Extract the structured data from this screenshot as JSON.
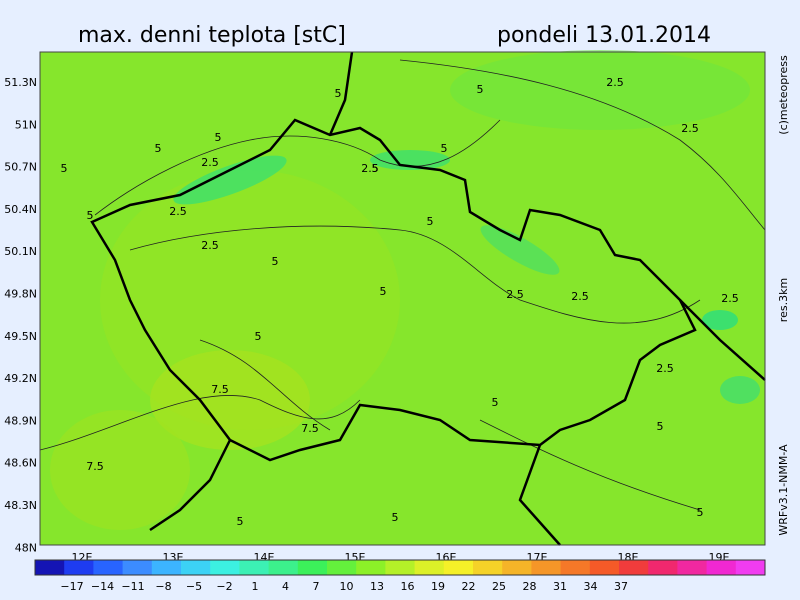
{
  "header": {
    "title": "max. denni teplota [stC]",
    "date": "pondeli 13.01.2014"
  },
  "map": {
    "lat_labels": [
      "51.3N",
      "51N",
      "50.7N",
      "50.4N",
      "50.1N",
      "49.8N",
      "49.5N",
      "49.2N",
      "48.9N",
      "48.6N",
      "48.3N",
      "48N"
    ],
    "lon_labels": [
      "12E",
      "13E",
      "14E",
      "15E",
      "16E",
      "17E",
      "18E",
      "19E"
    ],
    "contour_labels": [
      "5",
      "5",
      "2.5",
      "5",
      "5",
      "2.5",
      "5",
      "2.5",
      "5",
      "5",
      "5",
      "2.5",
      "2.5",
      "5",
      "2.5",
      "5",
      "2.5",
      "7.5",
      "7.5",
      "5",
      "7.5",
      "5",
      "5",
      "5",
      "5",
      "2.5",
      "5",
      "2.5",
      "5",
      "2.5"
    ]
  },
  "colorbar": {
    "labels": [
      "−17",
      "−14",
      "−11",
      "−8",
      "−5",
      "−2",
      "1",
      "4",
      "7",
      "10",
      "13",
      "16",
      "19",
      "22",
      "25",
      "28",
      "31",
      "34",
      "37"
    ],
    "colors": [
      "#1414b4",
      "#1e3cf0",
      "#2864ff",
      "#3c8cff",
      "#3cb4ff",
      "#3cd2f5",
      "#3cf0e1",
      "#3cf0b4",
      "#3cf08c",
      "#3cf05a",
      "#64f03c",
      "#8cf028",
      "#b4f028",
      "#dcf028",
      "#f5f028",
      "#f5d228",
      "#f5b428",
      "#f59628",
      "#f57828",
      "#f55a28",
      "#f03c3c",
      "#f0286e",
      "#f028a0",
      "#f028d2",
      "#f03cf0"
    ]
  },
  "side": {
    "copyright": "(c)meteopress",
    "resolution": "res.3km",
    "model": "WRFv3.1-NMM-A"
  }
}
